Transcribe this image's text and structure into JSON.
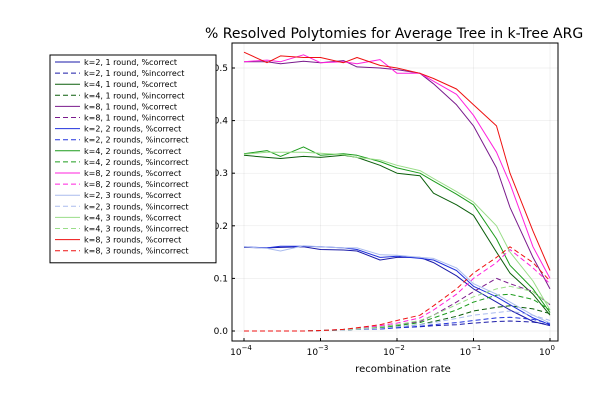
{
  "chart_data": {
    "type": "line",
    "title": "% Resolved Polytomies for Average Tree in k-Tree ARG",
    "xlabel": "recombination rate",
    "ylabel": "",
    "xscale": "log10",
    "xlim": [
      0.0001,
      1
    ],
    "ylim": [
      0,
      0.5
    ],
    "xticks": [
      {
        "value": 0.0001,
        "base": "10",
        "exp": "−4"
      },
      {
        "value": 0.001,
        "base": "10",
        "exp": "−3"
      },
      {
        "value": 0.01,
        "base": "10",
        "exp": "−2"
      },
      {
        "value": 0.1,
        "base": "10",
        "exp": "−1"
      },
      {
        "value": 1,
        "base": "10",
        "exp": "0"
      }
    ],
    "yticks": [
      "0.0",
      "0.1",
      "0.2",
      "0.3",
      "0.4",
      "0.5"
    ],
    "grid": true,
    "legend_position": "top-left outside",
    "x": [
      0.0001,
      0.0002,
      0.0003,
      0.0006,
      0.001,
      0.002,
      0.003,
      0.006,
      0.01,
      0.02,
      0.03,
      0.06,
      0.1,
      0.2,
      0.3,
      0.6,
      1
    ],
    "series": [
      {
        "name": "k=2, 1 round, %correct",
        "color": "#1a1aa8",
        "dash": "solid",
        "values": [
          0.159,
          0.158,
          0.159,
          0.16,
          0.155,
          0.154,
          0.152,
          0.135,
          0.14,
          0.14,
          0.13,
          0.105,
          0.08,
          0.055,
          0.04,
          0.018,
          0.01
        ]
      },
      {
        "name": "k=2, 1 round, %incorrect",
        "color": "#1a1aa8",
        "dash": "dashed",
        "values": [
          0.0,
          0.0,
          0.0,
          0.0,
          0.001,
          0.002,
          0.003,
          0.004,
          0.006,
          0.008,
          0.01,
          0.012,
          0.015,
          0.018,
          0.019,
          0.017,
          0.012
        ]
      },
      {
        "name": "k=4, 1 round, %correct",
        "color": "#0b5e0b",
        "dash": "solid",
        "values": [
          0.334,
          0.33,
          0.328,
          0.332,
          0.33,
          0.334,
          0.33,
          0.315,
          0.3,
          0.295,
          0.262,
          0.24,
          0.22,
          0.15,
          0.11,
          0.07,
          0.03
        ]
      },
      {
        "name": "k=4, 1 round, %incorrect",
        "color": "#0b5e0b",
        "dash": "dashed",
        "values": [
          0.0,
          0.0,
          0.0,
          0.0,
          0.001,
          0.002,
          0.003,
          0.005,
          0.008,
          0.012,
          0.018,
          0.028,
          0.038,
          0.045,
          0.048,
          0.042,
          0.033
        ]
      },
      {
        "name": "k=8, 1 round, %correct",
        "color": "#7a1a8c",
        "dash": "solid",
        "values": [
          0.512,
          0.512,
          0.508,
          0.513,
          0.51,
          0.514,
          0.502,
          0.5,
          0.497,
          0.49,
          0.47,
          0.43,
          0.39,
          0.31,
          0.235,
          0.14,
          0.08
        ]
      },
      {
        "name": "k=8, 1 round, %incorrect",
        "color": "#7a1a8c",
        "dash": "dashed",
        "values": [
          0.0,
          0.0,
          0.0,
          0.0,
          0.001,
          0.003,
          0.005,
          0.008,
          0.012,
          0.018,
          0.03,
          0.055,
          0.075,
          0.1,
          0.09,
          0.075,
          0.05
        ]
      },
      {
        "name": "k=2, 2 rounds, %correct",
        "color": "#2233dd",
        "dash": "solid",
        "values": [
          0.16,
          0.158,
          0.161,
          0.161,
          0.16,
          0.158,
          0.155,
          0.14,
          0.142,
          0.138,
          0.135,
          0.115,
          0.085,
          0.065,
          0.05,
          0.025,
          0.012
        ]
      },
      {
        "name": "k=2, 2 rounds, %incorrect",
        "color": "#2233dd",
        "dash": "dashed",
        "values": [
          0.0,
          0.0,
          0.0,
          0.0,
          0.001,
          0.002,
          0.003,
          0.004,
          0.006,
          0.009,
          0.012,
          0.016,
          0.02,
          0.025,
          0.026,
          0.022,
          0.014
        ]
      },
      {
        "name": "k=4, 2 rounds, %correct",
        "color": "#1c9c1c",
        "dash": "solid",
        "values": [
          0.337,
          0.343,
          0.332,
          0.35,
          0.334,
          0.337,
          0.334,
          0.322,
          0.31,
          0.3,
          0.285,
          0.26,
          0.24,
          0.175,
          0.125,
          0.08,
          0.035
        ]
      },
      {
        "name": "k=4, 2 rounds, %incorrect",
        "color": "#1c9c1c",
        "dash": "dashed",
        "values": [
          0.0,
          0.0,
          0.0,
          0.0,
          0.001,
          0.002,
          0.003,
          0.006,
          0.01,
          0.016,
          0.025,
          0.04,
          0.055,
          0.068,
          0.07,
          0.06,
          0.04
        ]
      },
      {
        "name": "k=8, 2 rounds, %correct",
        "color": "#ff22dd",
        "dash": "solid",
        "values": [
          0.512,
          0.515,
          0.512,
          0.525,
          0.51,
          0.512,
          0.508,
          0.516,
          0.49,
          0.49,
          0.475,
          0.45,
          0.41,
          0.34,
          0.28,
          0.16,
          0.1
        ]
      },
      {
        "name": "k=8, 2 rounds, %incorrect",
        "color": "#ff22dd",
        "dash": "dashed",
        "values": [
          0.0,
          0.0,
          0.0,
          0.0,
          0.001,
          0.003,
          0.005,
          0.01,
          0.015,
          0.025,
          0.04,
          0.07,
          0.1,
          0.13,
          0.155,
          0.12,
          0.09
        ]
      },
      {
        "name": "k=2, 3 rounds, %correct",
        "color": "#aabbee",
        "dash": "solid",
        "values": [
          0.16,
          0.157,
          0.152,
          0.162,
          0.16,
          0.158,
          0.158,
          0.145,
          0.144,
          0.14,
          0.138,
          0.12,
          0.09,
          0.07,
          0.055,
          0.03,
          0.015
        ]
      },
      {
        "name": "k=2, 3 rounds, %incorrect",
        "color": "#aabbee",
        "dash": "dashed",
        "values": [
          0.0,
          0.0,
          0.0,
          0.0,
          0.001,
          0.002,
          0.003,
          0.005,
          0.008,
          0.012,
          0.016,
          0.024,
          0.03,
          0.035,
          0.038,
          0.03,
          0.02
        ]
      },
      {
        "name": "k=4, 3 rounds, %correct",
        "color": "#99dd88",
        "dash": "solid",
        "values": [
          0.336,
          0.34,
          0.34,
          0.34,
          0.338,
          0.335,
          0.33,
          0.325,
          0.315,
          0.305,
          0.29,
          0.265,
          0.245,
          0.2,
          0.15,
          0.095,
          0.04
        ]
      },
      {
        "name": "k=4, 3 rounds, %incorrect",
        "color": "#99dd88",
        "dash": "dashed",
        "values": [
          0.0,
          0.0,
          0.0,
          0.0,
          0.001,
          0.003,
          0.004,
          0.008,
          0.012,
          0.02,
          0.03,
          0.05,
          0.065,
          0.08,
          0.085,
          0.075,
          0.05
        ]
      },
      {
        "name": "k=8, 3 rounds, %correct",
        "color": "#ee1111",
        "dash": "solid",
        "values": [
          0.53,
          0.51,
          0.523,
          0.52,
          0.52,
          0.51,
          0.52,
          0.505,
          0.5,
          0.49,
          0.48,
          0.46,
          0.43,
          0.39,
          0.3,
          0.19,
          0.115
        ]
      },
      {
        "name": "k=8, 3 rounds, %incorrect",
        "color": "#ee1111",
        "dash": "dashed",
        "values": [
          0.0,
          0.0,
          0.0,
          0.0,
          0.001,
          0.003,
          0.006,
          0.012,
          0.02,
          0.03,
          0.048,
          0.08,
          0.11,
          0.14,
          0.16,
          0.13,
          0.095
        ]
      }
    ]
  }
}
